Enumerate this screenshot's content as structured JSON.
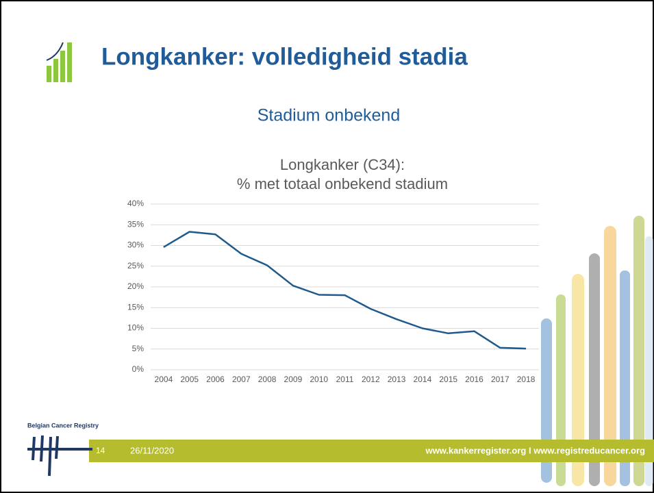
{
  "slide": {
    "title": "Longkanker: volledigheid stadia",
    "subtitle": "Stadium onbekend",
    "logo_text": "Belgian Cancer Registry",
    "page_number": "14",
    "date": "26/11/2020",
    "footer_url": "www.kankerregister.org I www.registreducancer.org"
  },
  "chart_data": {
    "type": "line",
    "title": "Longkanker (C34):",
    "subtitle": "% met totaal onbekend stadium",
    "categories": [
      "2004",
      "2005",
      "2006",
      "2007",
      "2008",
      "2009",
      "2010",
      "2011",
      "2012",
      "2013",
      "2014",
      "2015",
      "2016",
      "2017",
      "2018"
    ],
    "series": [
      {
        "name": "% met totaal onbekend stadium",
        "color": "#1f5a8c",
        "values": [
          29.6,
          33.3,
          32.7,
          28.0,
          25.2,
          20.3,
          18.1,
          18.0,
          14.7,
          12.2,
          10.0,
          8.8,
          9.3,
          5.3,
          5.1
        ]
      }
    ],
    "ylim": [
      0,
      40
    ],
    "yticks": [
      {
        "value": 0,
        "label": "0%"
      },
      {
        "value": 5,
        "label": "5%"
      },
      {
        "value": 10,
        "label": "10%"
      },
      {
        "value": 15,
        "label": "15%"
      },
      {
        "value": 20,
        "label": "20%"
      },
      {
        "value": 25,
        "label": "25%"
      },
      {
        "value": 30,
        "label": "30%"
      },
      {
        "value": 35,
        "label": "35%"
      },
      {
        "value": 40,
        "label": "40%"
      }
    ],
    "grid": true
  }
}
